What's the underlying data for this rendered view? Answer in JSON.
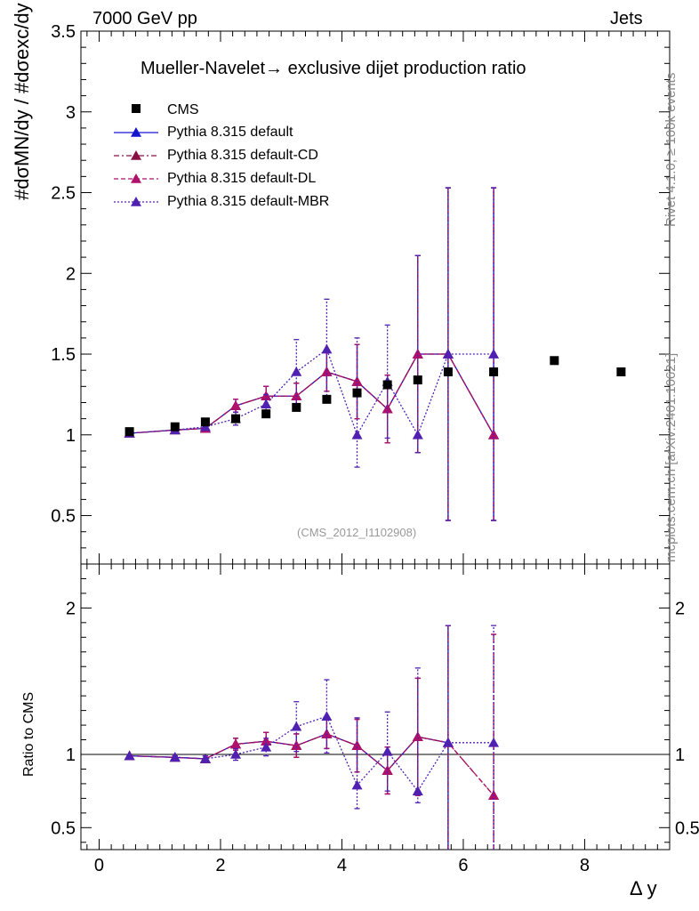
{
  "header": {
    "left": "7000 GeV pp",
    "right": "Jets"
  },
  "side_labels": {
    "rivet": "Rivet 4.1.0, ≥ 100k events",
    "mcplots": "mcplots.cern.ch [arXiv:2401.10621]"
  },
  "watermark": "(CMS_2012_I1102908)",
  "chart_data": [
    {
      "type": "scatter",
      "panel": "main",
      "title": "Mueller-Navelet→ exclusive dijet production ratio",
      "ylabel": "#dσMN/dy / #dσexc/dy",
      "xlabel": "Δ y",
      "xlim": [
        -0.3,
        9.4
      ],
      "ylim": [
        0.2,
        3.5
      ],
      "xticks": [
        0,
        2,
        4,
        6,
        8
      ],
      "yticks": [
        0.5,
        1,
        1.5,
        2,
        2.5,
        3,
        3.5
      ],
      "ytick_labels": [
        "0.5",
        "1",
        "1.5",
        "2",
        "2.5",
        "3",
        "3.5"
      ],
      "legend": [
        "CMS",
        "Pythia 8.315 default",
        "Pythia 8.315 default-CD",
        "Pythia 8.315 default-DL",
        "Pythia 8.315 default-MBR"
      ],
      "cms": {
        "name": "CMS",
        "x": [
          0.5,
          1.25,
          1.75,
          2.25,
          2.75,
          3.25,
          3.75,
          4.25,
          4.75,
          5.25,
          5.75,
          6.5,
          7.5,
          8.6
        ],
        "y": [
          1.02,
          1.05,
          1.08,
          1.1,
          1.13,
          1.17,
          1.22,
          1.26,
          1.31,
          1.34,
          1.39,
          1.39,
          1.46,
          1.39
        ]
      },
      "series": [
        {
          "name": "Pythia 8.315 default",
          "color": "#1515d0",
          "dash": "",
          "x": [
            0.5,
            1.25,
            1.75,
            2.25,
            2.75,
            3.25,
            3.75,
            4.25,
            4.75,
            5.25,
            5.75,
            6.5
          ],
          "y": [
            1.01,
            1.03,
            1.04,
            1.18,
            1.24,
            1.24,
            1.39,
            1.33,
            1.16,
            1.5,
            1.5,
            1.0
          ],
          "yerr_lo": [
            0.005,
            0.01,
            0.02,
            0.04,
            0.06,
            0.08,
            0.12,
            0.23,
            0.21,
            0.61,
            1.03,
            0.53
          ],
          "yerr_hi": [
            0.005,
            0.01,
            0.02,
            0.04,
            0.06,
            0.08,
            0.12,
            0.23,
            0.21,
            0.61,
            1.03,
            1.53
          ]
        },
        {
          "name": "Pythia 8.315 default-CD",
          "color": "#8a1043",
          "dash": "6,3,2,3",
          "x": [
            0.5,
            1.25,
            1.75,
            2.25,
            2.75,
            3.25,
            3.75,
            4.25,
            4.75,
            5.25,
            5.75,
            6.5
          ],
          "y": [
            1.01,
            1.03,
            1.04,
            1.18,
            1.24,
            1.24,
            1.39,
            1.33,
            1.16,
            1.5,
            1.5,
            1.0
          ],
          "yerr_lo": [
            0.005,
            0.01,
            0.02,
            0.04,
            0.06,
            0.08,
            0.12,
            0.23,
            0.21,
            0.61,
            1.03,
            0.53
          ],
          "yerr_hi": [
            0.005,
            0.01,
            0.02,
            0.04,
            0.06,
            0.08,
            0.12,
            0.23,
            0.21,
            0.61,
            1.03,
            1.53
          ]
        },
        {
          "name": "Pythia 8.315 default-DL",
          "color": "#b0106a",
          "dash": "5,3",
          "x": [
            0.5,
            1.25,
            1.75,
            2.25,
            2.75,
            3.25,
            3.75,
            4.25,
            4.75,
            5.25,
            5.75,
            6.5
          ],
          "y": [
            1.01,
            1.03,
            1.04,
            1.18,
            1.24,
            1.24,
            1.39,
            1.33,
            1.16,
            1.5,
            1.5,
            1.0
          ],
          "yerr_lo": [
            0.005,
            0.01,
            0.02,
            0.04,
            0.06,
            0.08,
            0.12,
            0.23,
            0.21,
            0.61,
            1.03,
            0.53
          ],
          "yerr_hi": [
            0.005,
            0.01,
            0.02,
            0.04,
            0.06,
            0.08,
            0.12,
            0.23,
            0.21,
            0.61,
            1.03,
            1.53
          ]
        },
        {
          "name": "Pythia 8.315 default-MBR",
          "color": "#5020b0",
          "dash": "2,2",
          "x": [
            0.5,
            1.25,
            1.75,
            2.25,
            2.75,
            3.25,
            3.75,
            4.25,
            4.75,
            5.25,
            5.75,
            6.5
          ],
          "y": [
            1.01,
            1.03,
            1.05,
            1.1,
            1.19,
            1.39,
            1.53,
            1.0,
            1.33,
            1.0,
            1.5,
            1.5
          ],
          "yerr_lo": [
            0.005,
            0.01,
            0.02,
            0.04,
            0.06,
            0.2,
            0.31,
            0.2,
            0.35,
            0.11,
            1.03,
            1.03
          ],
          "yerr_hi": [
            0.005,
            0.01,
            0.02,
            0.04,
            0.06,
            0.2,
            0.31,
            0.6,
            0.35,
            1.11,
            1.03,
            1.03
          ]
        }
      ]
    },
    {
      "type": "scatter",
      "panel": "ratio",
      "ylabel": "Ratio to CMS",
      "xlabel": "Δ y",
      "xlim": [
        -0.3,
        9.4
      ],
      "ylim": [
        0.35,
        2.3
      ],
      "xticks": [
        0,
        2,
        4,
        6,
        8
      ],
      "xtick_labels": [
        "0",
        "2",
        "4",
        "6",
        "8"
      ],
      "yticks": [
        0.5,
        1,
        2
      ],
      "ytick_labels": [
        "0.5",
        "1",
        "2"
      ],
      "reference_line": 1,
      "series": [
        {
          "name": "Pythia 8.315 default",
          "color": "#1515d0",
          "dash": "",
          "x": [
            0.5,
            1.25,
            1.75,
            2.25,
            2.75,
            3.25,
            3.75,
            4.25,
            4.75,
            5.25,
            5.75
          ],
          "y": [
            0.99,
            0.98,
            0.97,
            1.07,
            1.09,
            1.06,
            1.14,
            1.06,
            0.89,
            1.12,
            1.08
          ],
          "yerr_lo": [
            0.005,
            0.01,
            0.02,
            0.04,
            0.06,
            0.08,
            0.1,
            0.18,
            0.16,
            0.4,
            0.8
          ],
          "yerr_hi": [
            0.005,
            0.01,
            0.02,
            0.04,
            0.06,
            0.08,
            0.1,
            0.18,
            0.16,
            0.4,
            0.8
          ]
        },
        {
          "name": "Pythia 8.315 default-CD",
          "color": "#8a1043",
          "dash": "6,3,2,3",
          "x": [
            0.5,
            1.25,
            1.75,
            2.25,
            2.75,
            3.25,
            3.75,
            4.25,
            4.75,
            5.25,
            5.75,
            6.5
          ],
          "y": [
            0.99,
            0.98,
            0.97,
            1.07,
            1.09,
            1.06,
            1.14,
            1.06,
            0.89,
            1.12,
            1.08,
            0.72
          ],
          "yerr_lo": [
            0.005,
            0.01,
            0.02,
            0.04,
            0.06,
            0.08,
            0.1,
            0.18,
            0.16,
            0.4,
            0.8,
            0.4
          ],
          "yerr_hi": [
            0.005,
            0.01,
            0.02,
            0.04,
            0.06,
            0.08,
            0.1,
            0.18,
            0.16,
            0.4,
            0.8,
            1.1
          ]
        },
        {
          "name": "Pythia 8.315 default-DL",
          "color": "#b0106a",
          "dash": "5,3",
          "x": [
            0.5,
            1.25,
            1.75,
            2.25,
            2.75,
            3.25,
            3.75,
            4.25,
            4.75,
            5.25,
            5.75,
            6.5
          ],
          "y": [
            0.99,
            0.98,
            0.97,
            1.07,
            1.09,
            1.06,
            1.14,
            1.06,
            0.89,
            1.12,
            1.08,
            0.72
          ],
          "yerr_lo": [
            0.005,
            0.01,
            0.02,
            0.04,
            0.06,
            0.08,
            0.1,
            0.18,
            0.16,
            0.4,
            0.8,
            0.4
          ],
          "yerr_hi": [
            0.005,
            0.01,
            0.02,
            0.04,
            0.06,
            0.08,
            0.1,
            0.18,
            0.16,
            0.4,
            0.8,
            1.1
          ]
        },
        {
          "name": "Pythia 8.315 default-MBR",
          "color": "#5020b0",
          "dash": "2,2",
          "x": [
            0.5,
            1.25,
            1.75,
            2.25,
            2.75,
            3.25,
            3.75,
            4.25,
            4.75,
            5.25,
            5.75,
            6.5
          ],
          "y": [
            0.99,
            0.98,
            0.97,
            1.0,
            1.05,
            1.19,
            1.26,
            0.79,
            1.02,
            0.75,
            1.08,
            1.08
          ],
          "yerr_lo": [
            0.005,
            0.01,
            0.02,
            0.04,
            0.06,
            0.17,
            0.25,
            0.16,
            0.27,
            0.08,
            0.8,
            0.8
          ],
          "yerr_hi": [
            0.005,
            0.01,
            0.02,
            0.04,
            0.06,
            0.17,
            0.25,
            0.46,
            0.27,
            0.84,
            0.8,
            0.8
          ]
        }
      ]
    }
  ]
}
